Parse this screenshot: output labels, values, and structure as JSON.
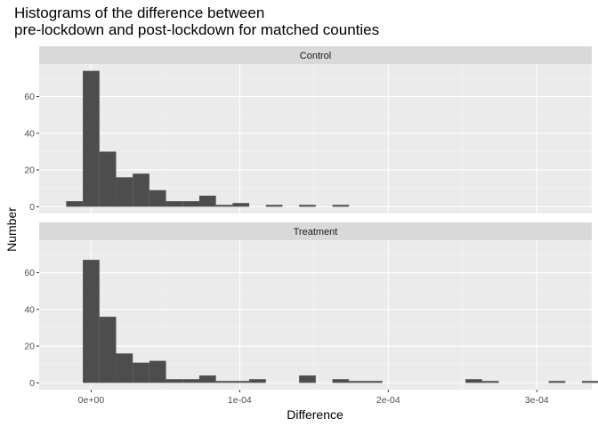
{
  "chart_data": {
    "type": "bar",
    "title_line1": "Histograms of the difference between",
    "title_line2": "pre-lockdown and post-lockdown for matched counties",
    "xlabel": "Difference",
    "ylabel": "Number",
    "xlim": [
      -3.5e-05,
      0.000337
    ],
    "ylim": [
      -3.7,
      77.7
    ],
    "x_ticks": [
      0,
      0.0001,
      0.0002,
      0.0003
    ],
    "x_tick_labels": [
      "0e+00",
      "1e-04",
      "2e-04",
      "3e-04"
    ],
    "y_ticks": [
      0,
      20,
      40,
      60
    ],
    "y_tick_labels": [
      "0",
      "20",
      "40",
      "60"
    ],
    "bin_width": 1.12e-05,
    "first_bin_left": -1.68e-05,
    "grid": true,
    "bar_color": "#4d4d4d",
    "panel_bg": "#ebebeb",
    "strip_bg": "#d9d9d9",
    "panels": [
      {
        "label": "Control",
        "counts": [
          3,
          74,
          30,
          16,
          18,
          9,
          3,
          3,
          6,
          1,
          2,
          0,
          1,
          0,
          1,
          0,
          1,
          0,
          0,
          0,
          0,
          0,
          0,
          0,
          0,
          0,
          0,
          0,
          0,
          0,
          0,
          0
        ]
      },
      {
        "label": "Treatment",
        "counts": [
          0,
          67,
          36,
          16,
          11,
          12,
          2,
          2,
          4,
          1,
          1,
          2,
          0,
          0,
          4,
          0,
          2,
          1,
          1,
          0,
          0,
          0,
          0,
          0,
          2,
          1,
          0,
          0,
          0,
          1,
          0,
          1
        ]
      }
    ]
  }
}
